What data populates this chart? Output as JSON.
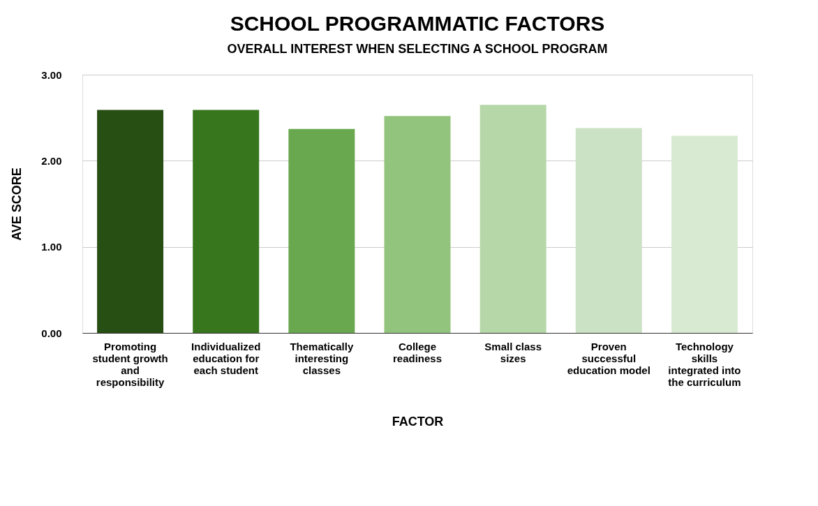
{
  "chart_data": {
    "type": "bar",
    "title": "SCHOOL PROGRAMMATIC FACTORS",
    "subtitle": "OVERALL INTEREST WHEN SELECTING A SCHOOL PROGRAM",
    "xlabel": "FACTOR",
    "ylabel": "AVE SCORE",
    "categories": [
      "Promoting student growth and responsibility",
      "Individualized education for each student",
      "Thematically interesting classes",
      "College readiness",
      "Small class sizes",
      "Proven successful education model",
      "Technology skills integrated into the curriculum"
    ],
    "values": [
      2.59,
      2.59,
      2.37,
      2.52,
      2.65,
      2.38,
      2.29
    ],
    "colors": [
      "#274e13",
      "#38761d",
      "#6aa84f",
      "#93c47d",
      "#b6d7a8",
      "#cce2c5",
      "#d9ead3"
    ],
    "ylim": [
      0,
      3
    ],
    "yticks": [
      {
        "value": 0,
        "label": "0.00"
      },
      {
        "value": 1,
        "label": "1.00"
      },
      {
        "value": 2,
        "label": "2.00"
      },
      {
        "value": 3,
        "label": "3.00"
      }
    ],
    "grid": "y"
  }
}
